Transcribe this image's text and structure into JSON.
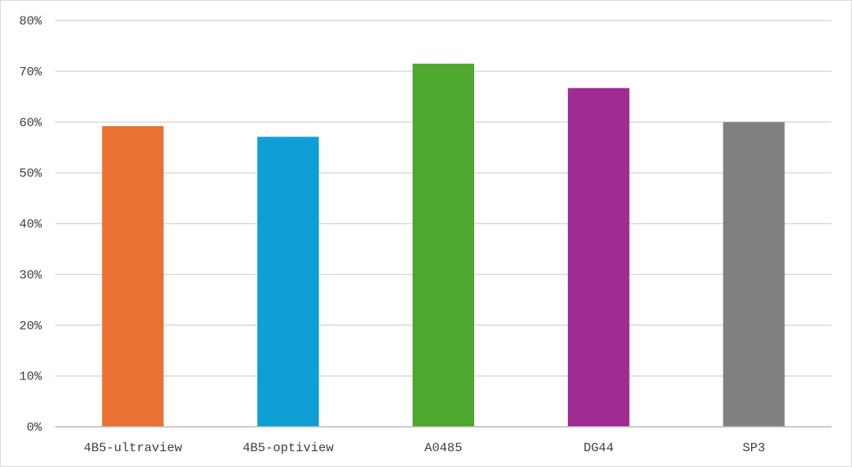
{
  "chart_data": {
    "type": "bar",
    "categories": [
      "4B5-ultraview",
      "4B5-optiview",
      "A0485",
      "DG44",
      "SP3"
    ],
    "values": [
      59.2,
      57.1,
      71.5,
      66.7,
      60.0
    ],
    "colors": [
      "#e97132",
      "#0f9ed5",
      "#4ea72e",
      "#a02b93",
      "#808080"
    ],
    "title": "",
    "xlabel": "",
    "ylabel": "",
    "ylim": [
      0,
      80
    ],
    "yticks": [
      "0%",
      "10%",
      "20%",
      "30%",
      "40%",
      "50%",
      "60%",
      "70%",
      "80%"
    ],
    "grid": true,
    "legend": "none",
    "value_format": "percent"
  }
}
